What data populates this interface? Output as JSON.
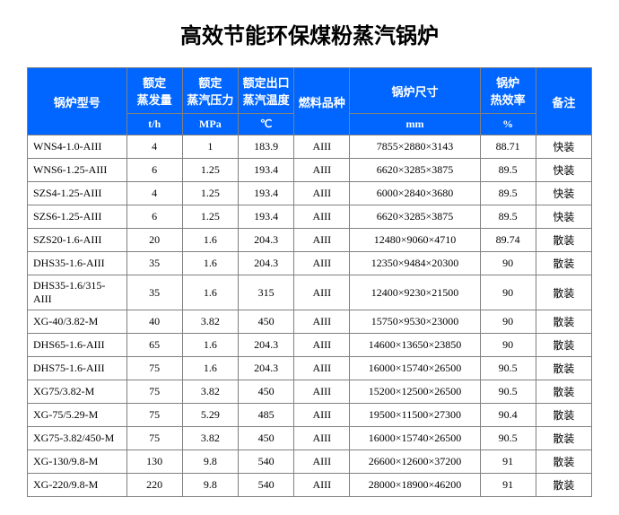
{
  "title": "高效节能环保煤粉蒸汽锅炉",
  "headers": {
    "model": "锅炉型号",
    "evaporation_label": "额定\n蒸发量",
    "evaporation_unit": "t/h",
    "pressure_label": "额定\n蒸汽压力",
    "pressure_unit": "MPa",
    "temp_label": "额定出口\n蒸汽温度",
    "temp_unit": "℃",
    "fuel": "燃料品种",
    "size_label": "锅炉尺寸",
    "size_unit": "mm",
    "efficiency_label": "锅炉\n热效率",
    "efficiency_unit": "%",
    "remark": "备注"
  },
  "rows": [
    {
      "model": "WNS4-1.0-AIII",
      "evap": "4",
      "pressure": "1",
      "temp": "183.9",
      "fuel": "AIII",
      "size": "7855×2880×3143",
      "eff": "88.71",
      "remark": "快装"
    },
    {
      "model": "WNS6-1.25-AIII",
      "evap": "6",
      "pressure": "1.25",
      "temp": "193.4",
      "fuel": "AIII",
      "size": "6620×3285×3875",
      "eff": "89.5",
      "remark": "快装"
    },
    {
      "model": "SZS4-1.25-AIII",
      "evap": "4",
      "pressure": "1.25",
      "temp": "193.4",
      "fuel": "AIII",
      "size": "6000×2840×3680",
      "eff": "89.5",
      "remark": "快装"
    },
    {
      "model": "SZS6-1.25-AIII",
      "evap": "6",
      "pressure": "1.25",
      "temp": "193.4",
      "fuel": "AIII",
      "size": "6620×3285×3875",
      "eff": "89.5",
      "remark": "快装"
    },
    {
      "model": "SZS20-1.6-AIII",
      "evap": "20",
      "pressure": "1.6",
      "temp": "204.3",
      "fuel": "AIII",
      "size": "12480×9060×4710",
      "eff": "89.74",
      "remark": "散装"
    },
    {
      "model": "DHS35-1.6-AIII",
      "evap": "35",
      "pressure": "1.6",
      "temp": "204.3",
      "fuel": "AIII",
      "size": "12350×9484×20300",
      "eff": "90",
      "remark": "散装"
    },
    {
      "model": "DHS35-1.6/315-AIII",
      "evap": "35",
      "pressure": "1.6",
      "temp": "315",
      "fuel": "AIII",
      "size": "12400×9230×21500",
      "eff": "90",
      "remark": "散装"
    },
    {
      "model": "XG-40/3.82-M",
      "evap": "40",
      "pressure": "3.82",
      "temp": "450",
      "fuel": "AIII",
      "size": "15750×9530×23000",
      "eff": "90",
      "remark": "散装"
    },
    {
      "model": "DHS65-1.6-AIII",
      "evap": "65",
      "pressure": "1.6",
      "temp": "204.3",
      "fuel": "AIII",
      "size": "14600×13650×23850",
      "eff": "90",
      "remark": "散装"
    },
    {
      "model": "DHS75-1.6-AIII",
      "evap": "75",
      "pressure": "1.6",
      "temp": "204.3",
      "fuel": "AIII",
      "size": "16000×15740×26500",
      "eff": "90.5",
      "remark": "散装"
    },
    {
      "model": "XG75/3.82-M",
      "evap": "75",
      "pressure": "3.82",
      "temp": "450",
      "fuel": "AIII",
      "size": "15200×12500×26500",
      "eff": "90.5",
      "remark": "散装"
    },
    {
      "model": "XG-75/5.29-M",
      "evap": "75",
      "pressure": "5.29",
      "temp": "485",
      "fuel": "AIII",
      "size": "19500×11500×27300",
      "eff": "90.4",
      "remark": "散装"
    },
    {
      "model": "XG75-3.82/450-M",
      "evap": "75",
      "pressure": "3.82",
      "temp": "450",
      "fuel": "AIII",
      "size": "16000×15740×26500",
      "eff": "90.5",
      "remark": "散装"
    },
    {
      "model": "XG-130/9.8-M",
      "evap": "130",
      "pressure": "9.8",
      "temp": "540",
      "fuel": "AIII",
      "size": "26600×12600×37200",
      "eff": "91",
      "remark": "散装"
    },
    {
      "model": "XG-220/9.8-M",
      "evap": "220",
      "pressure": "9.8",
      "temp": "540",
      "fuel": "AIII",
      "size": "28000×18900×46200",
      "eff": "91",
      "remark": "散装"
    }
  ],
  "colors": {
    "header_bg": "#0066ff",
    "header_text": "#ffffff",
    "cell_bg": "#ffffff",
    "cell_text": "#000000",
    "border": "#808080"
  }
}
